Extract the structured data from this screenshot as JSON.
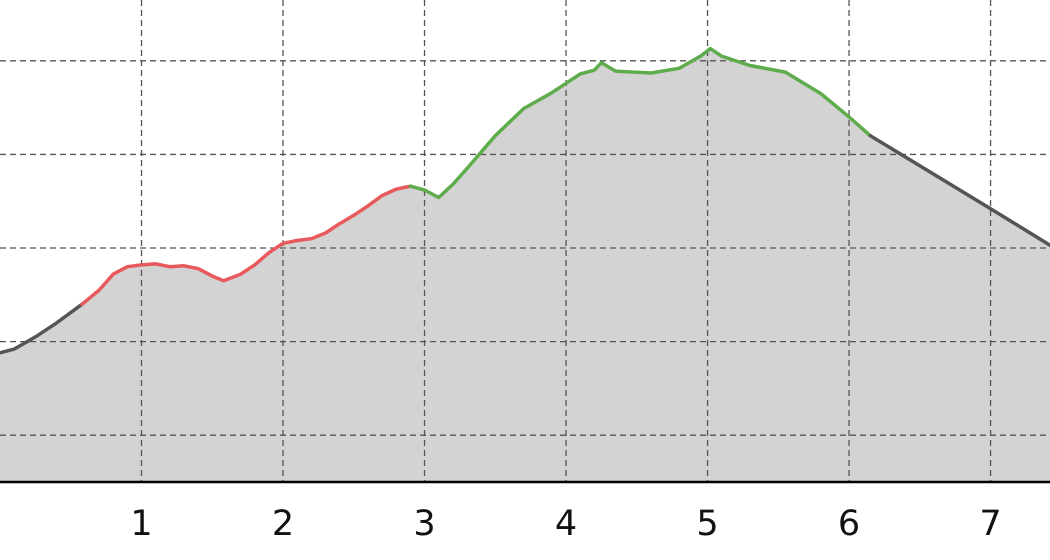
{
  "chart_data": {
    "type": "area",
    "title": "",
    "xlabel": "",
    "ylabel": "",
    "xlim": [
      0,
      7.42
    ],
    "ylim": [
      0,
      5.15
    ],
    "x_ticks": [
      {
        "value": 1,
        "label": "1"
      },
      {
        "value": 2,
        "label": "2"
      },
      {
        "value": 3,
        "label": "3"
      },
      {
        "value": 4,
        "label": "4"
      },
      {
        "value": 5,
        "label": "5"
      },
      {
        "value": 6,
        "label": "6"
      },
      {
        "value": 7,
        "label": "7"
      }
    ],
    "y_gridlines": [
      0.5,
      1.5,
      2.5,
      3.5,
      4.5
    ],
    "grid": true,
    "fill_color": "#d3d3d3",
    "axis_color": "#000000",
    "grid_color": "#555555",
    "series": [
      {
        "color": "#555555",
        "points": [
          [
            0,
            1.38
          ],
          [
            0.1,
            1.42
          ],
          [
            0.25,
            1.55
          ],
          [
            0.4,
            1.7
          ],
          [
            0.58,
            1.9
          ]
        ]
      },
      {
        "color": "#e8595c",
        "points": [
          [
            0.58,
            1.9
          ],
          [
            0.7,
            2.05
          ],
          [
            0.8,
            2.22
          ],
          [
            0.9,
            2.3
          ],
          [
            1.0,
            2.32
          ],
          [
            1.1,
            2.33
          ],
          [
            1.2,
            2.3
          ],
          [
            1.3,
            2.31
          ],
          [
            1.4,
            2.28
          ],
          [
            1.5,
            2.2
          ],
          [
            1.58,
            2.15
          ],
          [
            1.7,
            2.22
          ],
          [
            1.8,
            2.32
          ],
          [
            1.9,
            2.45
          ],
          [
            2.0,
            2.55
          ],
          [
            2.1,
            2.58
          ],
          [
            2.2,
            2.6
          ],
          [
            2.3,
            2.66
          ],
          [
            2.4,
            2.76
          ],
          [
            2.5,
            2.85
          ],
          [
            2.6,
            2.95
          ],
          [
            2.7,
            3.06
          ],
          [
            2.8,
            3.13
          ],
          [
            2.9,
            3.16
          ]
        ]
      },
      {
        "color": "#5fac4c",
        "points": [
          [
            2.9,
            3.16
          ],
          [
            3.0,
            3.12
          ],
          [
            3.1,
            3.04
          ],
          [
            3.2,
            3.18
          ],
          [
            3.3,
            3.35
          ],
          [
            3.5,
            3.7
          ],
          [
            3.7,
            3.99
          ],
          [
            3.9,
            4.16
          ],
          [
            4.1,
            4.36
          ],
          [
            4.2,
            4.4
          ],
          [
            4.25,
            4.48
          ],
          [
            4.35,
            4.39
          ],
          [
            4.6,
            4.37
          ],
          [
            4.8,
            4.42
          ],
          [
            4.95,
            4.55
          ],
          [
            5.02,
            4.63
          ],
          [
            5.1,
            4.55
          ],
          [
            5.3,
            4.45
          ],
          [
            5.55,
            4.38
          ],
          [
            5.8,
            4.15
          ],
          [
            6.0,
            3.9
          ],
          [
            6.15,
            3.7
          ]
        ]
      },
      {
        "color": "#555555",
        "points": [
          [
            6.15,
            3.7
          ],
          [
            6.5,
            3.38
          ],
          [
            7.0,
            2.92
          ],
          [
            7.42,
            2.53
          ]
        ]
      }
    ]
  }
}
